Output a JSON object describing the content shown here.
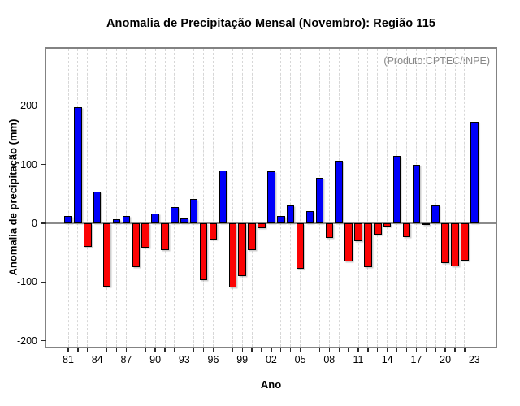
{
  "title": "Anomalia de Precipitação Mensal (Novembro): Região 115",
  "annotation": "(Produto:CPTEC/INPE)",
  "chart_data": {
    "type": "bar",
    "title": "Anomalia de Precipitação Mensal (Novembro): Região 115",
    "xlabel": "Ano",
    "ylabel": "Anomalia de precipitação (mm)",
    "annotation": "(Produto:CPTEC/INPE)",
    "years": [
      1981,
      1982,
      1983,
      1984,
      1985,
      1986,
      1987,
      1988,
      1989,
      1990,
      1991,
      1992,
      1993,
      1994,
      1995,
      1996,
      1997,
      1998,
      1999,
      2000,
      2001,
      2002,
      2003,
      2004,
      2005,
      2006,
      2007,
      2008,
      2009,
      2010,
      2011,
      2012,
      2013,
      2014,
      2015,
      2016,
      2017,
      2018,
      2019,
      2020,
      2021,
      2022,
      2023
    ],
    "values": [
      13,
      198,
      -40,
      54,
      -108,
      7,
      13,
      -74,
      -42,
      17,
      -46,
      27,
      8,
      41,
      -97,
      -28,
      90,
      -109,
      -90,
      -45,
      -9,
      88,
      12,
      30,
      -77,
      21,
      77,
      -25,
      106,
      -65,
      -30,
      -74,
      -20,
      -6,
      115,
      -23,
      99,
      -2,
      31,
      -68,
      -73,
      -64,
      172
    ],
    "ylim": [
      -210,
      297
    ],
    "yticks": [
      -200,
      -100,
      0,
      100,
      200
    ],
    "xtick_years": [
      1981,
      1984,
      1987,
      1990,
      1993,
      1996,
      1999,
      2002,
      2005,
      2008,
      2011,
      2014,
      2017,
      2020,
      2023
    ],
    "xtick_labels": [
      "81",
      "84",
      "87",
      "90",
      "93",
      "96",
      "99",
      "02",
      "05",
      "08",
      "11",
      "14",
      "17",
      "20",
      "23"
    ],
    "grid": {
      "vertical": true,
      "style": "dashed"
    },
    "legend_position": "none",
    "colors": {
      "positive": "#0000fa",
      "negative": "#fb0304",
      "bar_border": "#000000",
      "zero_line": "#8b8b8b",
      "frame": "#838383",
      "grid": "#d7d7d7",
      "annotation": "#878787",
      "text": "#000000"
    }
  }
}
